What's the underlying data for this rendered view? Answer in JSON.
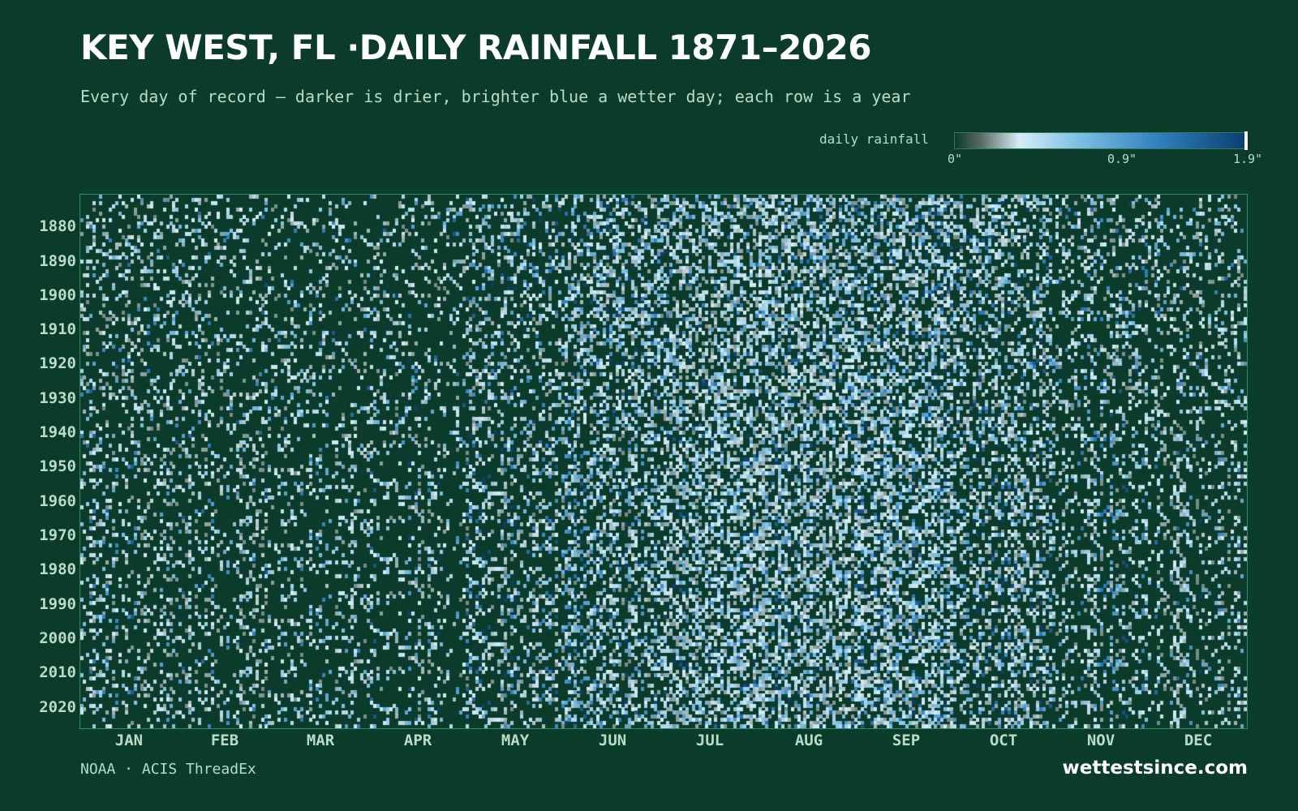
{
  "title": "KEY WEST, FL ·DAILY RAINFALL 1871–2026",
  "subtitle": "Every day of record — darker is drier, brighter blue a wetter day; each row is a year",
  "legend": {
    "label": "daily rainfall",
    "ticks": [
      "0\"",
      "0.9\"",
      "1.9\""
    ],
    "min": 0,
    "mid": 0.9,
    "max": 1.9
  },
  "source": "NOAA · ACIS ThreadEx",
  "brand": "wettestsince.com",
  "colors": {
    "background": "#0b3b2a",
    "scale": [
      "#0b3b2a",
      "#5c6b64",
      "#d6ecf6",
      "#7fc0e4",
      "#2f7fbf",
      "#0b3e6e"
    ]
  },
  "chart_data": {
    "type": "heatmap",
    "title": "KEY WEST, FL ·DAILY RAINFALL 1871–2026",
    "x_categories": [
      "JAN",
      "FEB",
      "MAR",
      "APR",
      "MAY",
      "JUN",
      "JUL",
      "AUG",
      "SEP",
      "OCT",
      "NOV",
      "DEC"
    ],
    "y_range": [
      1871,
      2026
    ],
    "y_ticks": [
      "1880",
      "1890",
      "1900",
      "1910",
      "1920",
      "1930",
      "1940",
      "1950",
      "1960",
      "1970",
      "1980",
      "1990",
      "2000",
      "2010",
      "2020"
    ],
    "value_unit": "inches",
    "value_range": [
      0,
      1.9
    ],
    "rows_per_year": 1,
    "columns_per_year": 366,
    "wet_day_probability_by_month": [
      0.2,
      0.18,
      0.16,
      0.14,
      0.22,
      0.36,
      0.4,
      0.46,
      0.5,
      0.38,
      0.24,
      0.2
    ],
    "mean_wet_day_rainfall_in_by_month": [
      0.35,
      0.35,
      0.35,
      0.4,
      0.5,
      0.55,
      0.45,
      0.5,
      0.55,
      0.5,
      0.4,
      0.35
    ]
  }
}
